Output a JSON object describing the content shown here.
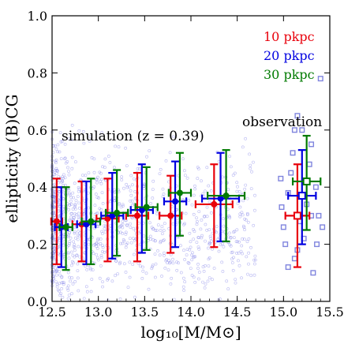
{
  "chart_data": {
    "type": "scatter",
    "xlabel": "log₁₀[M/M⊙]",
    "ylabel": "ellipticity (B)CG",
    "xlim": [
      12.5,
      15.5
    ],
    "ylim": [
      0.0,
      1.0
    ],
    "x_ticks": [
      "12.5",
      "13.0",
      "13.5",
      "14.0",
      "14.5",
      "15.0",
      "15.5"
    ],
    "y_ticks": [
      "0.0",
      "0.2",
      "0.4",
      "0.6",
      "0.8",
      "1.0"
    ],
    "legend": {
      "placement": "top-right",
      "entries": [
        {
          "label": "10 pkpc",
          "color": "#e8000b"
        },
        {
          "label": "20 pkpc",
          "color": "#0000e0"
        },
        {
          "label": "30 pkpc",
          "color": "#007a00"
        }
      ]
    },
    "annotations": {
      "simulation": "simulation (z = 0.39)",
      "observation": "observation"
    },
    "colors": {
      "background_cloud": "#8080e8",
      "observation_points": "#6a70d8"
    },
    "series": [
      {
        "name": "10 pkpc",
        "color": "#e8000b",
        "marker": "circle",
        "points": [
          {
            "x": 12.55,
            "y": 0.28,
            "xerr": 0.06,
            "ylo": 0.13,
            "yhi": 0.43
          },
          {
            "x": 12.82,
            "y": 0.27,
            "xerr": 0.1,
            "ylo": 0.14,
            "yhi": 0.42
          },
          {
            "x": 13.1,
            "y": 0.29,
            "xerr": 0.12,
            "ylo": 0.14,
            "yhi": 0.43
          },
          {
            "x": 13.42,
            "y": 0.3,
            "xerr": 0.12,
            "ylo": 0.14,
            "yhi": 0.45
          },
          {
            "x": 13.78,
            "y": 0.3,
            "xerr": 0.12,
            "ylo": 0.17,
            "yhi": 0.44
          },
          {
            "x": 14.25,
            "y": 0.34,
            "xerr": 0.2,
            "ylo": 0.19,
            "yhi": 0.48
          }
        ]
      },
      {
        "name": "20 pkpc",
        "color": "#0000e0",
        "marker": "circle",
        "points": [
          {
            "x": 12.6,
            "y": 0.26,
            "xerr": 0.07,
            "ylo": 0.12,
            "yhi": 0.4
          },
          {
            "x": 12.87,
            "y": 0.27,
            "xerr": 0.1,
            "ylo": 0.13,
            "yhi": 0.42
          },
          {
            "x": 13.15,
            "y": 0.3,
            "xerr": 0.12,
            "ylo": 0.15,
            "yhi": 0.45
          },
          {
            "x": 13.47,
            "y": 0.32,
            "xerr": 0.12,
            "ylo": 0.17,
            "yhi": 0.48
          },
          {
            "x": 13.83,
            "y": 0.35,
            "xerr": 0.12,
            "ylo": 0.19,
            "yhi": 0.49
          },
          {
            "x": 14.32,
            "y": 0.36,
            "xerr": 0.2,
            "ylo": 0.21,
            "yhi": 0.52
          }
        ]
      },
      {
        "name": "30 pkpc",
        "color": "#007a00",
        "marker": "circle",
        "points": [
          {
            "x": 12.65,
            "y": 0.26,
            "xerr": 0.07,
            "ylo": 0.11,
            "yhi": 0.4
          },
          {
            "x": 12.92,
            "y": 0.28,
            "xerr": 0.1,
            "ylo": 0.13,
            "yhi": 0.43
          },
          {
            "x": 13.2,
            "y": 0.31,
            "xerr": 0.12,
            "ylo": 0.16,
            "yhi": 0.46
          },
          {
            "x": 13.52,
            "y": 0.33,
            "xerr": 0.12,
            "ylo": 0.18,
            "yhi": 0.47
          },
          {
            "x": 13.88,
            "y": 0.38,
            "xerr": 0.12,
            "ylo": 0.23,
            "yhi": 0.52
          },
          {
            "x": 14.38,
            "y": 0.37,
            "xerr": 0.2,
            "ylo": 0.21,
            "yhi": 0.53
          }
        ]
      },
      {
        "name": "observation 10 pkpc",
        "color": "#e8000b",
        "marker": "open-square",
        "points": [
          {
            "x": 15.15,
            "y": 0.3,
            "xerr": 0.13,
            "ylo": 0.12,
            "yhi": 0.48
          }
        ]
      },
      {
        "name": "observation 20 pkpc",
        "color": "#0000e0",
        "marker": "open-square",
        "points": [
          {
            "x": 15.2,
            "y": 0.37,
            "xerr": 0.15,
            "ylo": 0.2,
            "yhi": 0.53
          }
        ]
      },
      {
        "name": "observation 30 pkpc",
        "color": "#007a00",
        "marker": "open-square",
        "points": [
          {
            "x": 15.25,
            "y": 0.42,
            "xerr": 0.15,
            "ylo": 0.25,
            "yhi": 0.58
          }
        ]
      }
    ],
    "observation_points": [
      [
        14.98,
        0.33
      ],
      [
        15.02,
        0.2
      ],
      [
        15.05,
        0.12
      ],
      [
        15.08,
        0.45
      ],
      [
        15.1,
        0.52
      ],
      [
        15.12,
        0.15
      ],
      [
        15.15,
        0.65
      ],
      [
        15.18,
        0.28
      ],
      [
        15.2,
        0.6
      ],
      [
        15.22,
        0.22
      ],
      [
        15.25,
        0.34
      ],
      [
        15.28,
        0.48
      ],
      [
        15.3,
        0.55
      ],
      [
        15.32,
        0.1
      ],
      [
        15.35,
        0.4
      ],
      [
        15.38,
        0.3
      ],
      [
        15.4,
        0.78
      ],
      [
        15.42,
        0.26
      ],
      [
        15.05,
        0.38
      ],
      [
        14.97,
        0.43
      ],
      [
        15.15,
        0.18
      ],
      [
        15.3,
        0.3
      ],
      [
        15.0,
        0.26
      ],
      [
        15.36,
        0.2
      ],
      [
        15.12,
        0.6
      ]
    ]
  }
}
